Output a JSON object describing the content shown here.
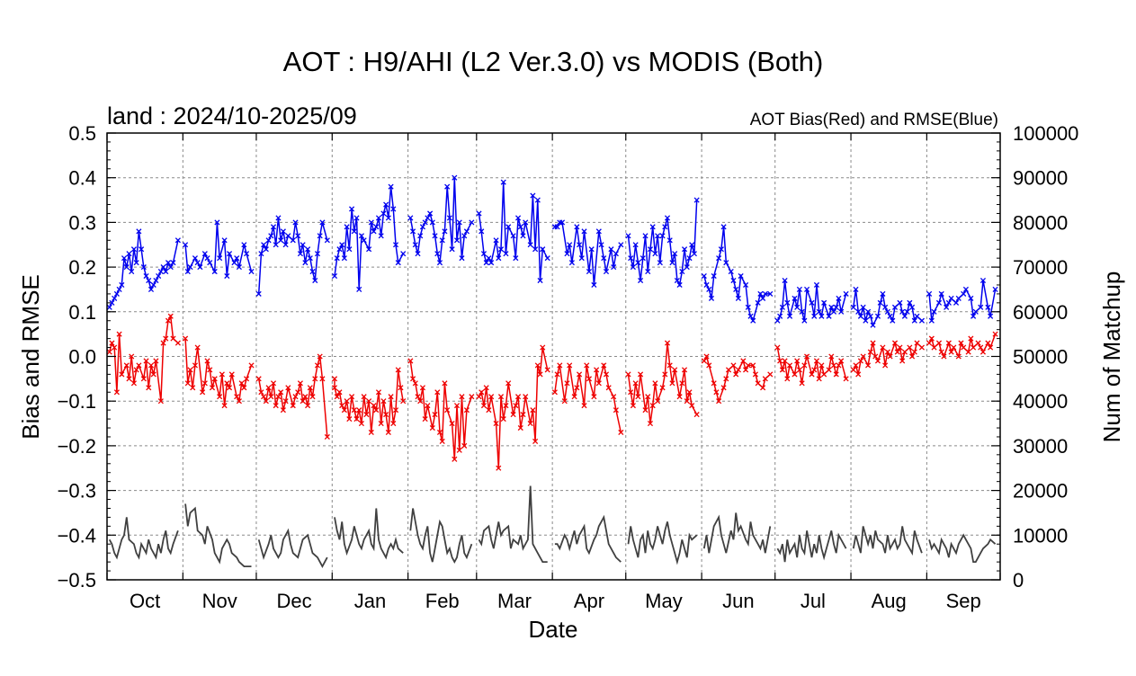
{
  "header": {
    "title": "AOT : H9/AHI (L2 Ver.3.0) vs MODIS (Both)",
    "subtitle_left": "land  :  2024/10-2025/09",
    "subtitle_right": "AOT Bias(Red) and RMSE(Blue)"
  },
  "chart_data": {
    "type": "line",
    "title": "AOT : H9/AHI (L2 Ver.3.0) vs MODIS (Both)",
    "xlabel": "Date",
    "ylabel": "Bias and RMSE",
    "y2label": "Num of Matchup",
    "ylim": [
      -0.5,
      0.5
    ],
    "y2lim": [
      0,
      100000
    ],
    "yticks": [
      "0.5",
      "0.4",
      "0.3",
      "0.2",
      "0.1",
      "0.0",
      "−0.1",
      "−0.2",
      "−0.3",
      "−0.4",
      "−0.5"
    ],
    "y2ticks": [
      "100000",
      "90000",
      "80000",
      "70000",
      "60000",
      "50000",
      "40000",
      "30000",
      "20000",
      "10000",
      "0"
    ],
    "x_range": [
      "2024-10-01",
      "2025-09-30"
    ],
    "months": [
      "Oct",
      "Nov",
      "Dec",
      "Jan",
      "Feb",
      "Mar",
      "Apr",
      "May",
      "Jun",
      "Jul",
      "Aug",
      "Sep"
    ],
    "grid": true,
    "series_colors": {
      "rmse": "#0000ee",
      "bias": "#ee0000",
      "matchup": "#404040"
    },
    "series": [
      {
        "values": {
          "Oct": [
            0.11,
            0.12,
            0.13,
            0.14,
            0.15,
            0.16,
            0.22,
            0.2,
            0.23,
            0.19,
            0.24,
            0.21,
            0.28,
            0.24,
            0.2,
            0.18,
            0.17,
            0.15,
            0.16,
            0.17,
            0.18,
            0.19,
            0.2,
            0.19,
            0.21,
            0.2,
            0.21,
            0.26
          ],
          "Nov": [
            0.25,
            0.19,
            0.2,
            0.22,
            0.21,
            0.2,
            0.23,
            0.22,
            0.21,
            0.19,
            0.3,
            0.22,
            0.26,
            0.18,
            0.23,
            0.21,
            0.22,
            0.2,
            0.25,
            0.23,
            0.19
          ],
          "Dec": [
            0.14,
            0.23,
            0.25,
            0.24,
            0.26,
            0.27,
            0.29,
            0.25,
            0.31,
            0.26,
            0.28,
            0.25,
            0.27,
            0.26,
            0.3,
            0.27,
            0.23,
            0.25,
            0.21,
            0.24,
            0.22,
            0.19,
            0.17,
            0.23,
            0.27,
            0.3,
            0.26
          ],
          "Jan": [
            0.18,
            0.22,
            0.24,
            0.25,
            0.22,
            0.29,
            0.24,
            0.33,
            0.28,
            0.31,
            0.15,
            0.27,
            0.26,
            0.24,
            0.3,
            0.28,
            0.29,
            0.31,
            0.27,
            0.32,
            0.34,
            0.31,
            0.38,
            0.33,
            0.25,
            0.21,
            0.23
          ],
          "Feb": [
            0.31,
            0.28,
            0.25,
            0.23,
            0.27,
            0.29,
            0.3,
            0.31,
            0.32,
            0.3,
            0.27,
            0.23,
            0.21,
            0.26,
            0.28,
            0.38,
            0.31,
            0.24,
            0.4,
            0.26,
            0.3,
            0.22,
            0.27,
            0.28,
            0.3
          ],
          "Mar": [
            0.32,
            0.28,
            0.23,
            0.21,
            0.22,
            0.21,
            0.26,
            0.22,
            0.24,
            0.39,
            0.23,
            0.29,
            0.27,
            0.22,
            0.31,
            0.29,
            0.27,
            0.3,
            0.25,
            0.36,
            0.24,
            0.35,
            0.17,
            0.24,
            0.22
          ],
          "Apr": [
            0.29,
            0.29,
            0.3,
            0.3,
            0.23,
            0.25,
            0.21,
            0.29,
            0.25,
            0.22,
            0.28,
            0.19,
            0.24,
            0.16,
            0.28,
            0.25,
            0.22,
            0.19,
            0.24,
            0.2,
            0.23,
            0.25
          ],
          "May": [
            0.27,
            0.22,
            0.2,
            0.25,
            0.21,
            0.17,
            0.22,
            0.27,
            0.19,
            0.24,
            0.29,
            0.23,
            0.27,
            0.21,
            0.27,
            0.29,
            0.31,
            0.26,
            0.21,
            0.23,
            0.17,
            0.16,
            0.19,
            0.24,
            0.2,
            0.22,
            0.25,
            0.23,
            0.35
          ],
          "Jun": [
            0.18,
            0.16,
            0.15,
            0.13,
            0.18,
            0.22,
            0.24,
            0.29,
            0.21,
            0.19,
            0.17,
            0.15,
            0.13,
            0.18,
            0.16,
            0.11,
            0.09,
            0.08,
            0.12,
            0.14,
            0.13,
            0.14,
            0.14
          ],
          "Jul": [
            0.08,
            0.09,
            0.11,
            0.17,
            0.12,
            0.09,
            0.13,
            0.11,
            0.15,
            0.1,
            0.08,
            0.15,
            0.12,
            0.09,
            0.16,
            0.1,
            0.09,
            0.12,
            0.09,
            0.11,
            0.1,
            0.11,
            0.13,
            0.1,
            0.14
          ],
          "Aug": [
            0.11,
            0.15,
            0.1,
            0.09,
            0.11,
            0.08,
            0.1,
            0.09,
            0.07,
            0.09,
            0.12,
            0.14,
            0.11,
            0.1,
            0.09,
            0.08,
            0.11,
            0.12,
            0.1,
            0.09,
            0.1,
            0.12,
            0.11,
            0.08,
            0.09,
            0.08
          ],
          "Sep": [
            0.14,
            0.08,
            0.1,
            0.12,
            0.14,
            0.11,
            0.12,
            0.13,
            0.12,
            0.13,
            0.14,
            0.15,
            0.13,
            0.09,
            0.1,
            0.11,
            0.17,
            0.11,
            0.09,
            0.15
          ]
        }
      },
      {
        "values": {
          "Oct": [
            0.01,
            0.03,
            0.02,
            -0.08,
            0.05,
            -0.04,
            -0.02,
            -0.05,
            0.0,
            -0.06,
            -0.03,
            -0.02,
            -0.05,
            -0.01,
            -0.07,
            -0.02,
            -0.04,
            -0.01,
            -0.1,
            0.03,
            0.04,
            0.08,
            0.09,
            0.04,
            0.03
          ],
          "Nov": [
            0.04,
            -0.06,
            -0.03,
            -0.07,
            -0.02,
            0.02,
            -0.08,
            -0.06,
            -0.01,
            -0.03,
            -0.07,
            -0.05,
            -0.09,
            -0.04,
            -0.11,
            -0.06,
            -0.07,
            -0.04,
            -0.09,
            -0.1,
            -0.06,
            -0.07,
            -0.05,
            -0.02
          ],
          "Dec": [
            -0.05,
            -0.08,
            -0.09,
            -0.1,
            -0.07,
            -0.09,
            -0.06,
            -0.11,
            -0.09,
            -0.08,
            -0.12,
            -0.1,
            -0.07,
            -0.11,
            -0.09,
            -0.08,
            -0.06,
            -0.1,
            -0.09,
            -0.11,
            -0.07,
            -0.09,
            -0.05,
            -0.02,
            0.0,
            -0.05,
            -0.18
          ],
          "Jan": [
            -0.05,
            -0.07,
            -0.09,
            -0.08,
            -0.11,
            -0.12,
            -0.1,
            -0.14,
            -0.09,
            -0.12,
            -0.14,
            -0.12,
            -0.15,
            -0.09,
            -0.13,
            -0.1,
            -0.17,
            -0.11,
            -0.12,
            -0.08,
            -0.15,
            -0.1,
            -0.13,
            -0.17,
            -0.09,
            -0.15,
            -0.12,
            -0.03,
            -0.07,
            -0.1
          ],
          "Feb": [
            -0.01,
            -0.05,
            -0.06,
            -0.09,
            -0.1,
            -0.07,
            -0.14,
            -0.11,
            -0.16,
            -0.13,
            -0.08,
            -0.17,
            -0.19,
            -0.06,
            -0.12,
            -0.15,
            -0.23,
            -0.11,
            -0.21,
            -0.09,
            -0.2,
            -0.12,
            -0.09
          ],
          "Mar": [
            -0.09,
            -0.08,
            -0.11,
            -0.07,
            -0.12,
            -0.09,
            -0.15,
            -0.25,
            -0.09,
            -0.14,
            -0.11,
            -0.06,
            -0.13,
            -0.11,
            -0.09,
            -0.16,
            -0.13,
            -0.09,
            -0.15,
            -0.12,
            -0.19,
            -0.02,
            -0.04,
            0.02,
            -0.03
          ],
          "Apr": [
            -0.08,
            -0.04,
            -0.02,
            -0.1,
            -0.06,
            -0.02,
            -0.09,
            -0.07,
            -0.04,
            -0.11,
            -0.02,
            -0.05,
            -0.09,
            -0.03,
            -0.06,
            -0.02,
            -0.04,
            -0.07,
            -0.09,
            -0.12,
            -0.17
          ],
          "May": [
            -0.04,
            -0.08,
            -0.11,
            -0.06,
            -0.09,
            -0.04,
            -0.12,
            -0.09,
            -0.15,
            -0.11,
            -0.06,
            -0.1,
            -0.07,
            -0.04,
            0.03,
            -0.02,
            -0.06,
            -0.03,
            -0.09,
            -0.06,
            -0.03,
            -0.1,
            -0.08,
            -0.11,
            -0.13
          ],
          "Jun": [
            -0.01,
            0.0,
            -0.02,
            -0.06,
            -0.08,
            -0.1,
            -0.07,
            -0.05,
            -0.03,
            -0.02,
            -0.04,
            -0.03,
            -0.01,
            -0.03,
            -0.02,
            -0.02,
            -0.04,
            -0.06,
            -0.07,
            -0.05,
            -0.04
          ],
          "Jul": [
            0.02,
            -0.01,
            -0.03,
            -0.01,
            -0.05,
            -0.02,
            -0.04,
            -0.01,
            -0.03,
            -0.06,
            -0.02,
            0.0,
            -0.04,
            -0.03,
            -0.01,
            -0.05,
            -0.02,
            -0.04,
            -0.03,
            0.0,
            -0.02,
            -0.04,
            -0.02,
            -0.01,
            -0.05
          ],
          "Aug": [
            -0.03,
            -0.02,
            -0.04,
            -0.01,
            0.0,
            -0.02,
            0.01,
            0.03,
            0.0,
            -0.01,
            0.02,
            -0.02,
            0.01,
            0.0,
            0.03,
            0.01,
            0.02,
            -0.01,
            0.01,
            0.02,
            0.0,
            0.01,
            0.03,
            0.02
          ],
          "Sep": [
            0.03,
            0.04,
            0.02,
            0.03,
            0.01,
            0.0,
            0.03,
            0.01,
            0.02,
            0.0,
            0.03,
            0.02,
            0.01,
            0.04,
            0.02,
            0.03,
            0.02,
            0.01,
            0.03,
            0.02,
            0.05
          ]
        }
      },
      {
        "values": {
          "Oct": [
            9000,
            8000,
            6000,
            5000,
            7000,
            9000,
            10000,
            14000,
            9000,
            8000,
            6000,
            5000,
            8000,
            7000,
            6000,
            9000,
            7000,
            5000,
            8000,
            6000,
            9000,
            11000,
            7000,
            6000,
            8000,
            11000
          ],
          "Nov": [
            17000,
            12000,
            15000,
            16000,
            11000,
            10000,
            8000,
            12000,
            9000,
            6000,
            4000,
            7000,
            9000,
            8000,
            6000,
            5000,
            4000,
            3000,
            3000,
            3000
          ],
          "Dec": [
            9000,
            7000,
            5000,
            8000,
            10000,
            7000,
            5000,
            6000,
            9000,
            11000,
            8000,
            6000,
            5000,
            7000,
            9000,
            10000,
            8000,
            6000,
            5000,
            4000,
            3000,
            5000
          ],
          "Jan": [
            14000,
            11000,
            9000,
            13000,
            8000,
            6000,
            9000,
            12000,
            10000,
            8000,
            7000,
            9000,
            11000,
            8000,
            7000,
            16000,
            9000,
            7000,
            5000,
            7000,
            8000,
            7000,
            9000,
            7000,
            6000
          ],
          "Feb": [
            11000,
            16000,
            13000,
            10000,
            8000,
            7000,
            10000,
            12000,
            6000,
            4000,
            7000,
            10000,
            13000,
            12000,
            9000,
            6000,
            7000,
            5000,
            4000,
            5000,
            8000,
            10000,
            6000,
            5000,
            8000
          ],
          "Mar": [
            9000,
            8000,
            11000,
            12000,
            9000,
            7000,
            13000,
            10000,
            11000,
            12000,
            7000,
            9000,
            8000,
            10000,
            7000,
            9000,
            21000,
            8000,
            6000,
            5000,
            4000,
            4000
          ],
          "Apr": [
            8000,
            8000,
            7000,
            10000,
            9000,
            7000,
            11000,
            8000,
            10000,
            12000,
            7000,
            6000,
            9000,
            10000,
            12000,
            14000,
            11000,
            8000,
            6000,
            5000,
            4000
          ],
          "May": [
            8000,
            12000,
            9000,
            7000,
            5000,
            9000,
            10000,
            6000,
            11000,
            8000,
            7000,
            9000,
            12000,
            10000,
            8000,
            11000,
            13000,
            10000,
            8000,
            6000,
            4000,
            6000,
            9000,
            7000,
            5000,
            10000,
            9000,
            10000
          ],
          "Jun": [
            7000,
            10000,
            6000,
            9000,
            12000,
            14000,
            10000,
            8000,
            6000,
            11000,
            9000,
            15000,
            11000,
            12000,
            9000,
            8000,
            13000,
            10000,
            8000,
            7000,
            9000,
            6000,
            12000
          ],
          "Jul": [
            7000,
            6000,
            8000,
            4000,
            9000,
            6000,
            8000,
            5000,
            10000,
            7000,
            6000,
            11000,
            5000,
            8000,
            6000,
            10000,
            7000,
            5000,
            9000,
            11000,
            8000,
            6000,
            10000,
            9000,
            7000
          ],
          "Aug": [
            7000,
            10000,
            8000,
            6000,
            12000,
            8000,
            10000,
            7000,
            11000,
            9000,
            8000,
            6000,
            10000,
            7000,
            9000,
            7000,
            8000,
            12000,
            9000,
            7000,
            6000,
            11000,
            9000,
            6000
          ],
          "Sep": [
            9000,
            7000,
            8000,
            6000,
            9000,
            7000,
            5000,
            8000,
            6000,
            8000,
            10000,
            9000,
            7000,
            4000,
            4000,
            6000,
            7000,
            8000,
            9000,
            8000
          ]
        }
      }
    ]
  }
}
